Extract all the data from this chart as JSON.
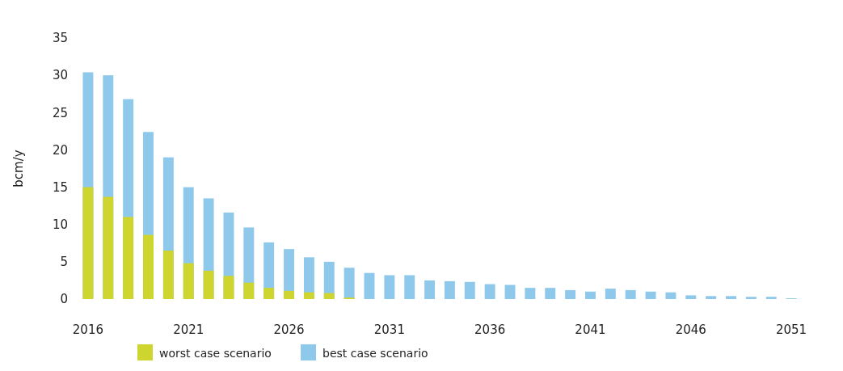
{
  "chart_data": {
    "type": "bar",
    "ylabel": "bcm/y",
    "categories": [
      "2016",
      null,
      null,
      null,
      null,
      "2021",
      null,
      null,
      null,
      null,
      "2026",
      null,
      null,
      null,
      null,
      "2031",
      null,
      null,
      null,
      null,
      "2036",
      null,
      null,
      null,
      null,
      "2041",
      null,
      null,
      null,
      null,
      "2046",
      null,
      null,
      null,
      null,
      "2051"
    ],
    "series": [
      {
        "name": "best case scenario",
        "color": "#8ec9ec",
        "values": [
          30.4,
          30.0,
          26.8,
          22.4,
          19.0,
          15.0,
          13.5,
          11.6,
          9.6,
          7.6,
          6.7,
          5.6,
          5.0,
          4.2,
          3.5,
          3.2,
          3.2,
          2.5,
          2.4,
          2.3,
          2.0,
          1.9,
          1.5,
          1.5,
          1.2,
          1.0,
          1.4,
          1.2,
          1.0,
          0.9,
          0.5,
          0.4,
          0.4,
          0.3,
          0.3,
          0.1
        ]
      },
      {
        "name": "worst case scenario",
        "color": "#cdd52e",
        "values": [
          15.0,
          13.7,
          11.0,
          8.6,
          6.5,
          4.8,
          3.8,
          3.1,
          2.2,
          1.5,
          1.1,
          0.9,
          0.8,
          0.2,
          0,
          0,
          0,
          0,
          0,
          0,
          0,
          0,
          0,
          0,
          0,
          0,
          0,
          0,
          0,
          0,
          0,
          0,
          0,
          0,
          0,
          0
        ]
      }
    ],
    "ylim": [
      0,
      35
    ],
    "yticks": [
      0,
      5,
      10,
      15,
      20,
      25,
      30,
      35
    ],
    "grid": false,
    "legend": "bottom"
  }
}
